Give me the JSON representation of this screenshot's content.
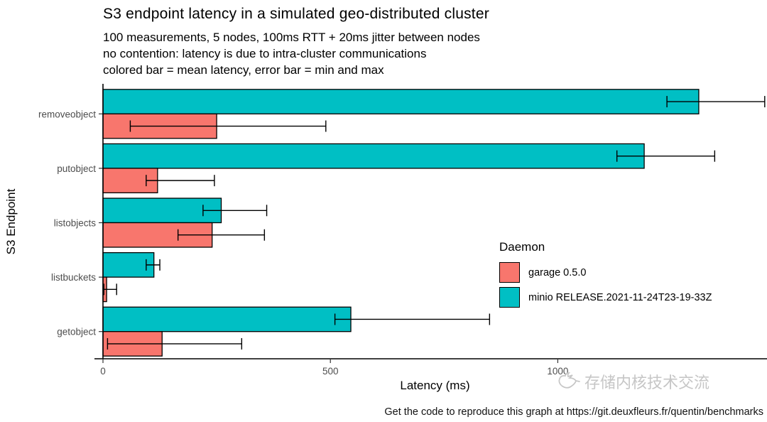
{
  "chart_data": {
    "type": "bar",
    "orientation": "horizontal",
    "title": "S3 endpoint latency in a simulated geo-distributed cluster",
    "subtitle_lines": [
      "100 measurements, 5 nodes, 100ms RTT + 20ms jitter between nodes",
      "no contention: latency is due to intra-cluster communications",
      "colored bar = mean latency, error bar = min and max"
    ],
    "xlabel": "Latency (ms)",
    "ylabel": "S3 Endpoint",
    "x_ticks": [
      0,
      500,
      1000
    ],
    "xlim": [
      0,
      1460
    ],
    "grid": false,
    "error_bar_meaning": "min and max",
    "legend": {
      "title": "Daemon",
      "position": "inside right"
    },
    "categories": [
      "removeobject",
      "putobject",
      "listobjects",
      "listbuckets",
      "getobject"
    ],
    "series": [
      {
        "name": "garage 0.5.0",
        "color": "#F8766D",
        "mean": [
          250,
          120,
          240,
          8,
          130
        ],
        "min": [
          60,
          95,
          165,
          2,
          10
        ],
        "max": [
          490,
          245,
          355,
          30,
          305
        ]
      },
      {
        "name": "minio RELEASE.2021-11-24T23-19-33Z",
        "color": "#00BFC4",
        "mean": [
          1310,
          1190,
          260,
          112,
          545
        ],
        "min": [
          1240,
          1130,
          220,
          95,
          510
        ],
        "max": [
          1455,
          1345,
          360,
          125,
          850
        ]
      }
    ]
  },
  "watermark": {
    "text": "存储内核技术交流",
    "icon": "dove-icon",
    "color": "#c6c6c6"
  },
  "caption": "Get the code to reproduce this graph at https://git.deuxfleurs.fr/quentin/benchmarks"
}
